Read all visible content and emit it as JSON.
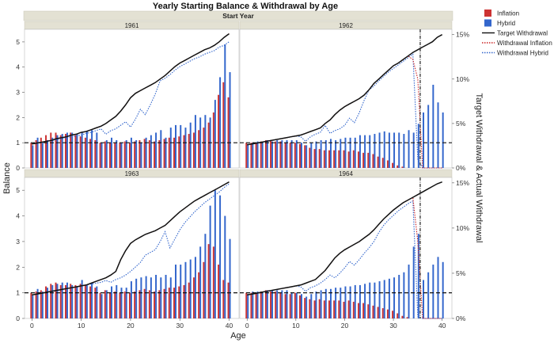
{
  "chart_data": {
    "type": "bar",
    "title": "Yearly Starting Balance & Withdrawal by Age",
    "group_header": "Start Year",
    "xlabel": "Age",
    "ylabel_left": "Balance",
    "ylabel_right": "Target Withdrawal & Actual Withdrawal",
    "x_ticks": [
      0,
      10,
      20,
      30,
      40
    ],
    "y_left_ticks": [
      0,
      1,
      2,
      3,
      4,
      5
    ],
    "y_right_ticks": [
      "0%",
      "5%",
      "10%",
      "15%"
    ],
    "xlim": [
      -1.5,
      42
    ],
    "ylim_left": [
      0,
      5.5
    ],
    "ylim_right_pct": [
      0,
      15.6
    ],
    "reference_line_balance": 1.0,
    "legend_position": "right",
    "legend": [
      {
        "label": "Inflation",
        "kind": "swatch",
        "color": "#cc3333"
      },
      {
        "label": "Hybrid",
        "kind": "swatch",
        "color": "#3366cc"
      },
      {
        "label": "Target Withdrawal",
        "kind": "line",
        "color": "#111111"
      },
      {
        "label": "Withdrawal Inflation",
        "kind": "dotted",
        "color": "#cc2222"
      },
      {
        "label": "Withdrawal Hybrid",
        "kind": "dotted",
        "color": "#3366cc"
      }
    ],
    "colors": {
      "inflation": "#cc3333",
      "hybrid": "#3366cc",
      "target": "#111111",
      "withdrawal_inflation": "#cc2222",
      "withdrawal_hybrid": "#3366cc",
      "strip": "#e3e1d3"
    },
    "panels": [
      {
        "start_year": "1961",
        "inflation": [
          1.0,
          1.1,
          1.2,
          1.3,
          1.4,
          1.4,
          1.3,
          1.35,
          1.4,
          1.3,
          1.25,
          1.2,
          1.15,
          1.1,
          1.0,
          1.05,
          1.0,
          1.0,
          1.0,
          1.05,
          1.0,
          1.05,
          1.1,
          1.15,
          1.1,
          1.05,
          1.1,
          1.15,
          1.2,
          1.2,
          1.25,
          1.3,
          1.35,
          1.4,
          1.5,
          1.6,
          1.8,
          2.2,
          2.9,
          3.4,
          2.8
        ],
        "hybrid": [
          0.9,
          1.2,
          1.0,
          1.1,
          1.2,
          1.3,
          1.35,
          1.4,
          1.4,
          1.35,
          1.4,
          1.45,
          1.5,
          1.4,
          1.0,
          1.1,
          1.2,
          1.1,
          1.0,
          1.1,
          1.2,
          1.1,
          1.0,
          1.2,
          1.3,
          1.4,
          1.5,
          1.2,
          1.6,
          1.7,
          1.7,
          1.6,
          1.8,
          2.1,
          2.0,
          2.1,
          2.0,
          2.7,
          3.6,
          4.9,
          3.8
        ],
        "target_withdrawal_pct": [
          2.7,
          2.8,
          2.9,
          3.0,
          3.1,
          3.3,
          3.4,
          3.5,
          3.7,
          3.8,
          4.0,
          4.1,
          4.3,
          4.5,
          4.7,
          5.0,
          5.4,
          5.8,
          6.4,
          7.1,
          7.9,
          8.4,
          8.7,
          9.0,
          9.3,
          9.6,
          10.0,
          10.4,
          10.9,
          11.4,
          11.8,
          12.1,
          12.4,
          12.7,
          13.0,
          13.3,
          13.5,
          13.8,
          14.2,
          14.7,
          15.1
        ],
        "withdrawal_inflation_pct": [
          2.7,
          2.8,
          2.9,
          3.0,
          3.1,
          3.3,
          3.4,
          3.5,
          3.7,
          3.8,
          4.0,
          4.1,
          4.3,
          4.5,
          4.7,
          5.0,
          5.4,
          5.8,
          6.4,
          7.1,
          7.9,
          8.4,
          8.7,
          9.0,
          9.3,
          9.6,
          10.0,
          10.4,
          10.9,
          11.4,
          11.8,
          12.1,
          12.4,
          12.7,
          13.0,
          13.3,
          13.5,
          13.8,
          14.2,
          14.7,
          15.1
        ],
        "withdrawal_hybrid_pct": [
          2.7,
          2.8,
          2.9,
          3.0,
          3.1,
          3.2,
          3.3,
          3.4,
          3.5,
          3.6,
          3.7,
          3.9,
          4.0,
          4.2,
          4.4,
          3.8,
          4.2,
          4.4,
          4.8,
          5.2,
          4.6,
          5.5,
          6.6,
          6.0,
          7.1,
          8.3,
          9.8,
          10.1,
          10.5,
          11.0,
          11.4,
          11.7,
          12.0,
          12.3,
          12.5,
          12.8,
          13.0,
          13.2,
          13.6,
          13.8,
          14.2
        ]
      },
      {
        "start_year": "1962",
        "inflation": [
          1.0,
          1.0,
          1.0,
          1.05,
          1.1,
          1.1,
          1.05,
          1.05,
          1.0,
          1.0,
          1.0,
          0.95,
          0.9,
          0.8,
          0.75,
          0.75,
          0.7,
          0.7,
          0.7,
          0.7,
          0.7,
          0.65,
          0.7,
          0.65,
          0.6,
          0.6,
          0.55,
          0.45,
          0.4,
          0.3,
          0.2,
          0.1,
          0.05,
          0,
          0,
          0,
          0,
          0,
          0,
          0,
          0
        ],
        "hybrid": [
          0.95,
          1.0,
          1.05,
          1.05,
          1.1,
          1.05,
          1.1,
          1.1,
          1.1,
          1.1,
          1.1,
          1.0,
          0.9,
          1.0,
          1.05,
          1.1,
          1.1,
          1.15,
          1.1,
          1.15,
          1.2,
          1.2,
          1.2,
          1.3,
          1.3,
          1.3,
          1.35,
          1.4,
          1.45,
          1.4,
          1.4,
          1.4,
          1.35,
          1.5,
          1.4,
          1.75,
          2.2,
          2.5,
          3.3,
          2.6,
          2.2
        ],
        "target_withdrawal_pct": [
          2.6,
          2.7,
          2.8,
          2.9,
          3.0,
          3.1,
          3.2,
          3.3,
          3.4,
          3.5,
          3.6,
          3.7,
          3.9,
          4.1,
          4.3,
          4.5,
          5.0,
          5.4,
          6.0,
          6.5,
          6.9,
          7.2,
          7.5,
          7.8,
          8.2,
          8.8,
          9.5,
          10.0,
          10.5,
          11.0,
          11.5,
          11.8,
          12.2,
          12.6,
          13.0,
          13.3,
          13.6,
          13.9,
          14.2,
          14.7,
          15.0
        ],
        "withdrawal_inflation_pct": [
          2.6,
          2.7,
          2.8,
          2.9,
          3.0,
          3.1,
          3.2,
          3.3,
          3.4,
          3.5,
          3.6,
          3.7,
          3.9,
          4.1,
          4.3,
          4.5,
          5.0,
          5.4,
          6.0,
          6.5,
          6.9,
          7.2,
          7.5,
          7.8,
          8.2,
          8.8,
          9.5,
          10.0,
          10.5,
          11.0,
          11.5,
          11.8,
          12.2,
          12.6,
          12.2,
          10.0,
          0,
          0,
          0,
          0,
          0
        ],
        "withdrawal_hybrid_pct": [
          2.6,
          2.7,
          2.8,
          2.9,
          3.0,
          3.1,
          3.2,
          3.3,
          3.4,
          3.5,
          3.6,
          3.5,
          3.0,
          3.5,
          3.8,
          4.0,
          4.8,
          3.9,
          4.2,
          4.4,
          4.8,
          5.6,
          5.1,
          6.2,
          7.6,
          8.8,
          9.2,
          9.8,
          10.3,
          10.8,
          11.2,
          11.6,
          12.0,
          12.4,
          12.8,
          1.0,
          0,
          0,
          0,
          0,
          0
        ]
      },
      {
        "start_year": "1963",
        "inflation": [
          1.0,
          1.05,
          1.1,
          1.25,
          1.35,
          1.4,
          1.3,
          1.3,
          1.35,
          1.3,
          1.35,
          1.3,
          1.25,
          1.2,
          1.0,
          1.1,
          1.0,
          1.05,
          1.0,
          1.05,
          1.0,
          1.05,
          1.1,
          1.15,
          1.1,
          1.05,
          1.1,
          1.15,
          1.2,
          1.2,
          1.25,
          1.3,
          1.4,
          1.6,
          1.8,
          2.2,
          2.9,
          2.8,
          2.1,
          1.5,
          1.4
        ],
        "hybrid": [
          0.9,
          1.15,
          1.05,
          1.2,
          1.3,
          1.35,
          1.4,
          1.4,
          1.3,
          1.25,
          1.5,
          1.3,
          1.4,
          1.25,
          0.95,
          1.1,
          1.25,
          1.3,
          1.2,
          1.2,
          1.45,
          1.55,
          1.6,
          1.65,
          1.6,
          1.7,
          1.6,
          1.7,
          1.6,
          2.1,
          2.1,
          2.2,
          2.3,
          2.4,
          2.8,
          3.3,
          4.4,
          5.0,
          4.8,
          4.0,
          3.1
        ],
        "target_withdrawal_pct": [
          2.6,
          2.7,
          2.8,
          2.9,
          3.0,
          3.1,
          3.2,
          3.3,
          3.4,
          3.5,
          3.6,
          3.7,
          3.9,
          4.1,
          4.3,
          4.5,
          4.8,
          5.2,
          6.5,
          7.5,
          8.3,
          8.7,
          9.0,
          9.3,
          9.5,
          9.7,
          10.0,
          10.3,
          10.8,
          11.3,
          11.8,
          12.2,
          12.6,
          13.0,
          13.3,
          13.6,
          13.9,
          14.2,
          14.5,
          14.8,
          15.1
        ],
        "withdrawal_inflation_pct": [
          2.6,
          2.7,
          2.8,
          2.9,
          3.0,
          3.1,
          3.2,
          3.3,
          3.4,
          3.5,
          3.6,
          3.7,
          3.9,
          4.1,
          4.3,
          4.5,
          4.8,
          5.2,
          6.5,
          7.5,
          8.3,
          8.7,
          9.0,
          9.3,
          9.5,
          9.7,
          10.0,
          10.3,
          10.8,
          11.3,
          11.8,
          12.2,
          12.6,
          13.0,
          13.3,
          13.6,
          13.9,
          14.2,
          14.5,
          14.8,
          15.1
        ],
        "withdrawal_hybrid_pct": [
          2.6,
          2.7,
          2.8,
          2.9,
          3.0,
          3.1,
          3.2,
          3.3,
          3.4,
          3.5,
          3.6,
          3.7,
          3.8,
          3.9,
          4.0,
          4.2,
          4.0,
          4.3,
          4.5,
          4.8,
          5.2,
          5.7,
          6.2,
          7.0,
          7.3,
          7.6,
          8.5,
          9.6,
          7.8,
          8.8,
          9.8,
          10.6,
          11.2,
          11.8,
          12.3,
          12.8,
          13.2,
          13.6,
          14.0,
          14.5,
          14.9
        ]
      },
      {
        "start_year": "1964",
        "inflation": [
          1.0,
          1.0,
          1.0,
          1.05,
          1.1,
          1.05,
          1.05,
          1.0,
          0.95,
          0.95,
          1.0,
          0.9,
          0.8,
          0.75,
          0.7,
          0.75,
          0.7,
          0.7,
          0.7,
          0.7,
          0.65,
          0.7,
          0.65,
          0.6,
          0.6,
          0.55,
          0.5,
          0.45,
          0.4,
          0.35,
          0.3,
          0.2,
          0.1,
          0.05,
          0,
          0,
          0,
          0,
          0,
          0,
          0
        ],
        "hybrid": [
          0.95,
          1.05,
          1.05,
          1.0,
          1.1,
          1.1,
          1.1,
          1.1,
          1.1,
          1.0,
          1.0,
          0.95,
          0.85,
          0.95,
          1.05,
          1.1,
          1.15,
          1.15,
          1.2,
          1.2,
          1.25,
          1.25,
          1.3,
          1.3,
          1.35,
          1.4,
          1.4,
          1.45,
          1.5,
          1.55,
          1.6,
          1.7,
          1.8,
          2.1,
          2.8,
          3.3,
          1.5,
          1.8,
          2.1,
          2.4,
          2.2
        ],
        "target_withdrawal_pct": [
          2.6,
          2.7,
          2.8,
          2.9,
          3.0,
          3.1,
          3.2,
          3.3,
          3.4,
          3.5,
          3.6,
          3.7,
          3.9,
          4.1,
          4.3,
          4.8,
          5.3,
          6.0,
          6.7,
          7.2,
          7.6,
          7.9,
          8.2,
          8.5,
          8.9,
          9.3,
          9.8,
          10.4,
          11.0,
          11.5,
          12.0,
          12.4,
          12.8,
          13.1,
          13.4,
          13.7,
          14.0,
          14.3,
          14.6,
          14.9,
          15.1
        ],
        "withdrawal_inflation_pct": [
          2.6,
          2.7,
          2.8,
          2.9,
          3.0,
          3.1,
          3.2,
          3.3,
          3.4,
          3.5,
          3.6,
          3.7,
          3.9,
          4.1,
          4.3,
          4.8,
          5.3,
          6.0,
          6.7,
          7.2,
          7.6,
          7.9,
          8.2,
          8.5,
          8.9,
          9.3,
          9.8,
          10.4,
          11.0,
          11.5,
          12.0,
          12.4,
          12.8,
          13.1,
          13.4,
          8.5,
          0,
          0,
          0,
          0,
          0
        ],
        "withdrawal_hybrid_pct": [
          2.6,
          2.7,
          2.8,
          2.9,
          3.0,
          3.1,
          3.2,
          3.3,
          3.4,
          3.5,
          3.6,
          3.5,
          3.0,
          3.4,
          3.6,
          3.9,
          4.3,
          4.8,
          4.5,
          5.0,
          5.6,
          6.3,
          5.9,
          6.5,
          7.2,
          7.8,
          8.5,
          9.5,
          10.3,
          10.9,
          11.4,
          11.9,
          12.3,
          12.7,
          13.0,
          0.2,
          0,
          0,
          0,
          0,
          0
        ]
      }
    ]
  }
}
